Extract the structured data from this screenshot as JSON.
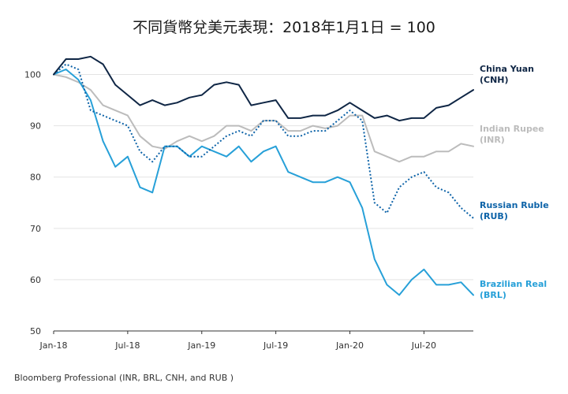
{
  "chart_data": {
    "type": "line",
    "title": "不同貨幣兌美元表現：2018年1月1日 = 100",
    "source": "Bloomberg Professional (INR, BRL, CNH, and RUB )",
    "xlabel": "",
    "ylabel": "",
    "x_ticks": [
      "Jan-18",
      "Jul-18",
      "Jan-19",
      "Jul-19",
      "Jan-20",
      "Jul-20"
    ],
    "y_ticks": [
      50,
      60,
      70,
      80,
      90,
      100
    ],
    "ylim": [
      50,
      105
    ],
    "grid": "horizontal",
    "x": [
      "2018-01",
      "2018-02",
      "2018-03",
      "2018-04",
      "2018-05",
      "2018-06",
      "2018-07",
      "2018-08",
      "2018-09",
      "2018-10",
      "2018-11",
      "2018-12",
      "2019-01",
      "2019-02",
      "2019-03",
      "2019-04",
      "2019-05",
      "2019-06",
      "2019-07",
      "2019-08",
      "2019-09",
      "2019-10",
      "2019-11",
      "2019-12",
      "2020-01",
      "2020-02",
      "2020-03",
      "2020-04",
      "2020-05",
      "2020-06",
      "2020-07",
      "2020-08",
      "2020-09",
      "2020-10",
      "2020-11"
    ],
    "series": [
      {
        "name": "China Yuan",
        "name_line2": "(CNH)",
        "color": "#0f2645",
        "style": "solid",
        "values": [
          100,
          103,
          103,
          103.5,
          102,
          98,
          96,
          94,
          95,
          94,
          94.5,
          95.5,
          96,
          98,
          98.5,
          98,
          94,
          94.5,
          95,
          91.5,
          91.5,
          92,
          92,
          93,
          94.5,
          93,
          91.5,
          92,
          91,
          91.5,
          91.5,
          93.5,
          94,
          95.5,
          97
        ]
      },
      {
        "name": "Indian Rupee",
        "name_line2": "(INR)",
        "color": "#bcbcbc",
        "style": "solid",
        "values": [
          100,
          99.5,
          98.5,
          97,
          94,
          93,
          92,
          88,
          86,
          85.5,
          87,
          88,
          87,
          88,
          90,
          90,
          89,
          91,
          91,
          89,
          89,
          90,
          89.5,
          90,
          92,
          92,
          85,
          84,
          83,
          84,
          84,
          85,
          85,
          86.5,
          86
        ]
      },
      {
        "name": "Russian Ruble",
        "name_line2": "(RUB)",
        "color": "#0d63a8",
        "style": "dotted",
        "values": [
          100,
          102,
          101,
          93,
          92,
          91,
          90,
          85,
          83,
          86,
          86,
          84,
          84,
          86,
          88,
          89,
          88,
          91,
          91,
          88,
          88,
          89,
          89,
          91,
          93,
          91,
          75,
          73,
          78,
          80,
          81,
          78,
          77,
          74,
          72
        ]
      },
      {
        "name": "Brazilian Real",
        "name_line2": "(BRL)",
        "color": "#27a0d8",
        "style": "solid",
        "values": [
          100,
          101,
          99,
          95,
          87,
          82,
          84,
          78,
          77,
          86,
          86,
          84,
          86,
          85,
          84,
          86,
          83,
          85,
          86,
          81,
          80,
          79,
          79,
          80,
          79,
          74,
          64,
          59,
          57,
          60,
          62,
          59,
          59,
          59.5,
          57
        ]
      }
    ]
  }
}
